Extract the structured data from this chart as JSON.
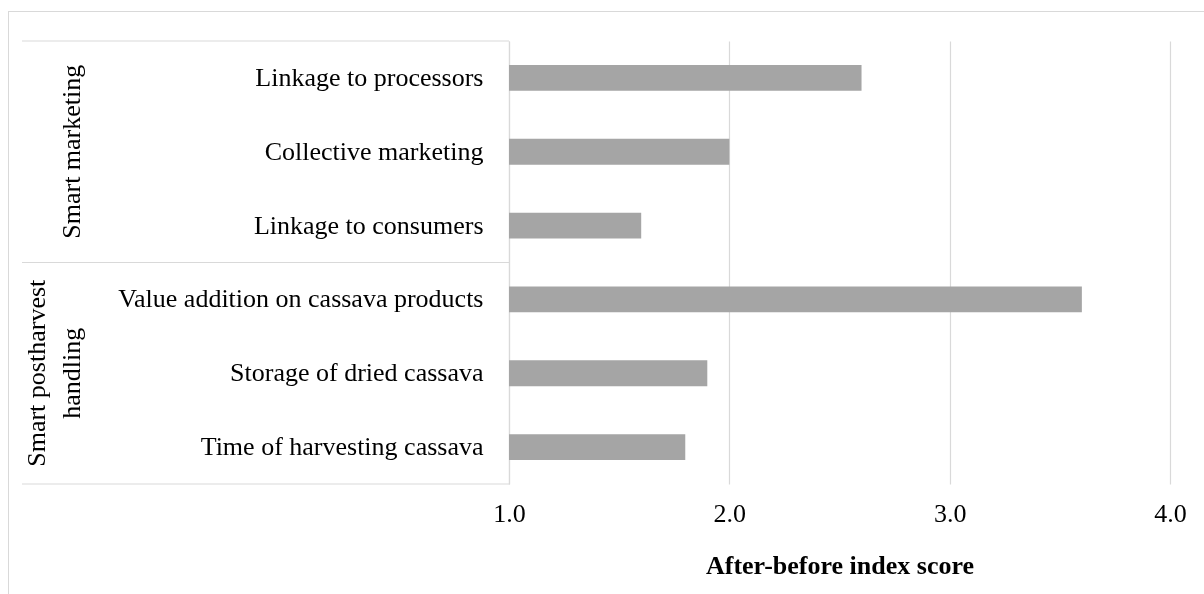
{
  "chart_data": {
    "type": "bar",
    "orientation": "horizontal",
    "xlabel": "After-before index score",
    "categories": [
      "Linkage to processors",
      "Collective marketing",
      "Linkage to consumers",
      "Value addition on cassava products",
      "Storage of dried cassava",
      "Time of harvesting cassava"
    ],
    "values": [
      2.6,
      2.0,
      1.6,
      3.6,
      1.9,
      1.8
    ],
    "color": "#a5a5a5",
    "xlim": [
      1,
      4
    ],
    "xticks": [
      {
        "value": 1,
        "label": "1.0"
      },
      {
        "value": 2,
        "label": "2.0"
      },
      {
        "value": 3,
        "label": "3.0"
      },
      {
        "value": 4,
        "label": "4.0"
      }
    ],
    "grid": "x",
    "annotations": [
      "Smart marketing",
      "Smart postharvest handling"
    ]
  }
}
